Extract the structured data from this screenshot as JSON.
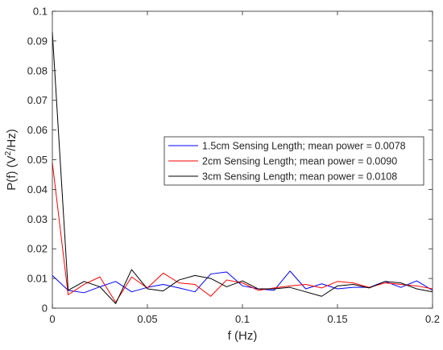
{
  "chart_data": {
    "type": "line",
    "title": "",
    "xlabel": "f (Hz)",
    "ylabel": "P(f) (V²/Hz)",
    "ylabel_parts": [
      "P(f) (V",
      "2",
      "/Hz)"
    ],
    "xlim": [
      0,
      0.2
    ],
    "ylim": [
      0,
      0.1
    ],
    "xticks": [
      0,
      0.05,
      0.1,
      0.15,
      0.2
    ],
    "xtick_labels": [
      "0",
      "0.05",
      "0.1",
      "0.15",
      "0.2"
    ],
    "yticks": [
      0,
      0.01,
      0.02,
      0.03,
      0.04,
      0.05,
      0.06,
      0.07,
      0.08,
      0.09,
      0.1
    ],
    "ytick_labels": [
      "0",
      "0.01",
      "0.02",
      "0.03",
      "0.04",
      "0.05",
      "0.06",
      "0.07",
      "0.08",
      "0.09",
      "0.1"
    ],
    "grid": false,
    "legend_position": "middle-right",
    "x": [
      0,
      0.0083,
      0.0167,
      0.025,
      0.0333,
      0.0417,
      0.05,
      0.0583,
      0.0667,
      0.075,
      0.0833,
      0.0917,
      0.1,
      0.1083,
      0.1167,
      0.125,
      0.1333,
      0.1417,
      0.15,
      0.1583,
      0.1667,
      0.175,
      0.1833,
      0.1917,
      0.2
    ],
    "series": [
      {
        "name": "1.5cm Sensing Length; mean power = 0.0078",
        "color": "#0000ff",
        "values": [
          0.011,
          0.006,
          0.0052,
          0.0072,
          0.009,
          0.0055,
          0.007,
          0.008,
          0.0068,
          0.0055,
          0.0115,
          0.0122,
          0.0075,
          0.0065,
          0.006,
          0.0125,
          0.0065,
          0.0082,
          0.0065,
          0.007,
          0.007,
          0.009,
          0.007,
          0.0092,
          0.006
        ]
      },
      {
        "name": "2cm Sensing Length; mean power = 0.0090",
        "color": "#ff0000",
        "values": [
          0.049,
          0.0045,
          0.008,
          0.0105,
          0.002,
          0.0105,
          0.0068,
          0.0118,
          0.0085,
          0.008,
          0.004,
          0.0095,
          0.0085,
          0.006,
          0.0068,
          0.0075,
          0.008,
          0.0068,
          0.009,
          0.0085,
          0.007,
          0.0085,
          0.008,
          0.0075,
          0.0065
        ]
      },
      {
        "name": "3cm Sensing Length; mean power = 0.0108",
        "color": "#000000",
        "values": [
          0.093,
          0.006,
          0.009,
          0.0072,
          0.0015,
          0.013,
          0.0065,
          0.0058,
          0.0095,
          0.011,
          0.01,
          0.0072,
          0.0092,
          0.0065,
          0.0065,
          0.007,
          0.0055,
          0.004,
          0.0075,
          0.008,
          0.0068,
          0.009,
          0.0085,
          0.0065,
          0.0055
        ]
      }
    ]
  }
}
